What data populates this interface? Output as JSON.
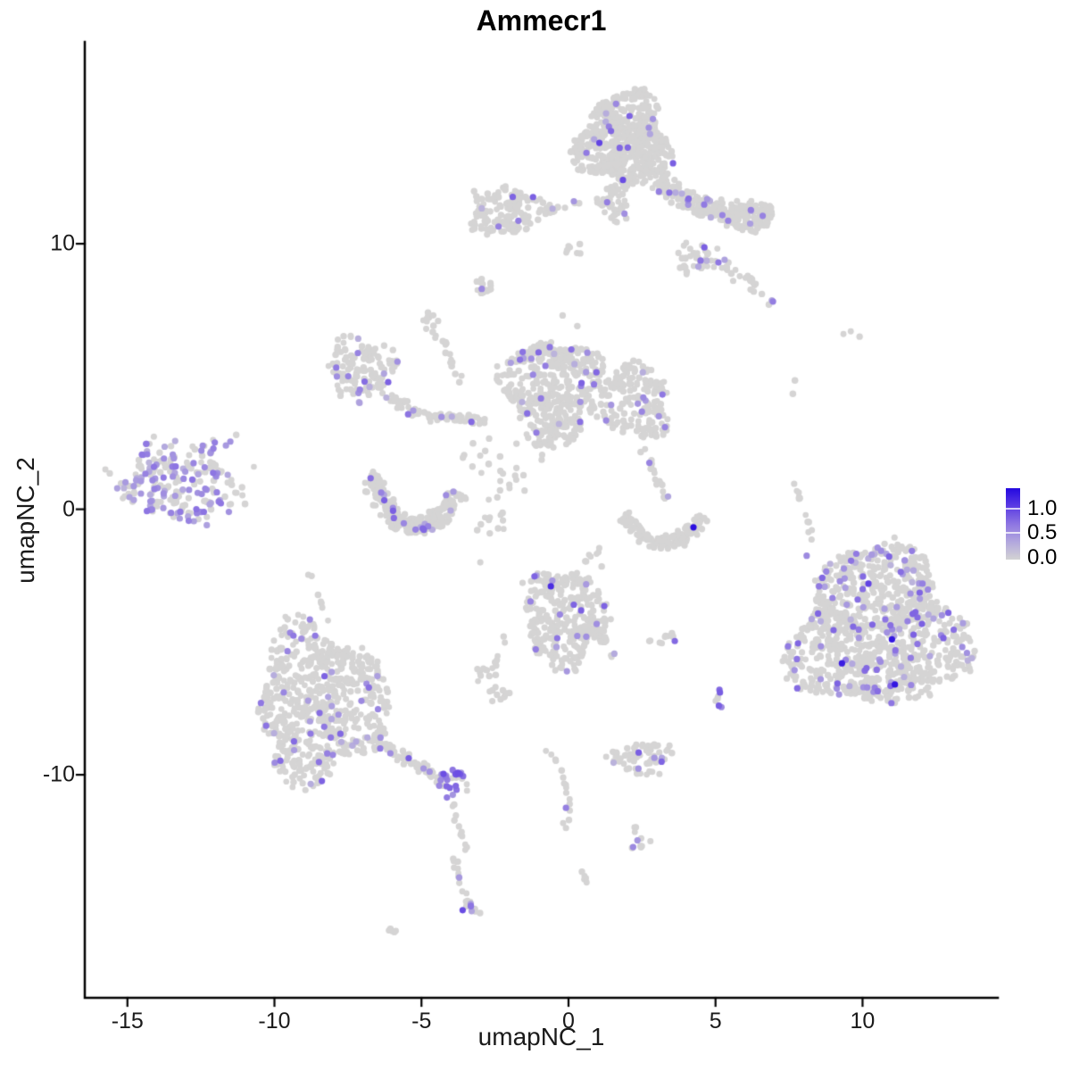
{
  "title": "Ammecr1",
  "axes": {
    "x": {
      "label": "umapNC_1"
    },
    "y": {
      "label": "umapNC_2"
    }
  },
  "legend": {
    "labels": [
      "1.0",
      "0.5",
      "0.0"
    ],
    "low_color": "#d3d3d3",
    "high_color": "#2408e0",
    "max_value": 1.4
  },
  "chart_data": {
    "type": "scatter",
    "title": "Ammecr1",
    "xlabel": "umapNC_1",
    "ylabel": "umapNC_2",
    "xlim": [
      -16.45,
      14.6
    ],
    "ylim": [
      -18.4,
      17.6
    ],
    "x_ticks": [
      -15,
      -10,
      -5,
      0,
      5,
      10
    ],
    "y_ticks": [
      10,
      0,
      -10
    ],
    "grid": false,
    "legend_position": "right",
    "point_base_color": "#d5d4d4",
    "expression_palette": [
      "#d3d3d3",
      "#b2a7de",
      "#8d75e2",
      "#5b3ce3",
      "#2408e0"
    ],
    "default_expr_range": [
      0.25,
      0.85
    ],
    "note": "UMAP feature plot; grey cells ~0 expression, purple-blue cells expressing Ammecr1 (scale 0 to ~1.4)",
    "clusters": [
      {
        "name": "top-main",
        "shape": "blob",
        "cx": 1.9,
        "cy": 13.9,
        "rx": 1.55,
        "ry": 1.75,
        "n": 600,
        "expr_frac": 0.04
      },
      {
        "name": "top-neck",
        "shape": "blob",
        "cx": 1.6,
        "cy": 11.6,
        "rx": 0.55,
        "ry": 0.8,
        "n": 45,
        "expr_frac": 0.05
      },
      {
        "name": "top-right-arm",
        "shape": "trail",
        "anchors": [
          [
            3.0,
            12.35
          ],
          [
            4.8,
            10.9
          ],
          [
            6.8,
            10.95
          ]
        ],
        "w": 1.05,
        "n": 220,
        "expr_frac": 0.06
      },
      {
        "name": "top-right-knob",
        "shape": "blob",
        "cx": 6.2,
        "cy": 11.1,
        "rx": 0.75,
        "ry": 0.65,
        "n": 60,
        "expr_frac": 0.05
      },
      {
        "name": "top-left-arm",
        "shape": "blob",
        "cx": -2.1,
        "cy": 11.25,
        "rx": 1.35,
        "ry": 0.9,
        "n": 140,
        "expr_frac": 0.04
      },
      {
        "name": "top-neck-dots",
        "shape": "trail",
        "anchors": [
          [
            -0.65,
            11.2
          ],
          [
            0.35,
            11.55
          ]
        ],
        "w": 0.4,
        "n": 12,
        "expr_frac": 0.08
      },
      {
        "name": "top-low-blob",
        "shape": "blob",
        "cx": 4.4,
        "cy": 9.5,
        "rx": 0.8,
        "ry": 0.6,
        "n": 40,
        "expr_frac": 0.05
      },
      {
        "name": "top-low-trail",
        "shape": "trail",
        "anchors": [
          [
            5.0,
            9.4
          ],
          [
            5.9,
            8.9
          ],
          [
            6.9,
            7.75
          ]
        ],
        "w": 0.45,
        "n": 28,
        "expr_frac": 0.1
      },
      {
        "name": "v-blob",
        "shape": "blob",
        "cx": 0.2,
        "cy": 9.75,
        "rx": 0.35,
        "ry": 0.3,
        "n": 7,
        "expr_frac": 0
      },
      {
        "name": "small-blob-a",
        "shape": "blob",
        "cx": -2.95,
        "cy": 8.35,
        "rx": 0.35,
        "ry": 0.4,
        "n": 13,
        "expr_frac": 0.1
      },
      {
        "name": "small-blob-b",
        "shape": "blob",
        "cx": -4.65,
        "cy": 6.95,
        "rx": 0.4,
        "ry": 0.5,
        "n": 13,
        "expr_frac": 0
      },
      {
        "name": "small-trail",
        "shape": "trail",
        "anchors": [
          [
            -4.25,
            6.4
          ],
          [
            -3.65,
            4.7
          ]
        ],
        "w": 0.3,
        "n": 13,
        "expr_frac": 0
      },
      {
        "name": "mid-left",
        "shape": "blob",
        "cx": -7.05,
        "cy": 5.3,
        "rx": 1.15,
        "ry": 1.2,
        "n": 130,
        "expr_frac": 0.13
      },
      {
        "name": "mid-bridge",
        "shape": "trail",
        "anchors": [
          [
            -6.35,
            4.4
          ],
          [
            -5.3,
            3.5
          ],
          [
            -4.3,
            3.45
          ]
        ],
        "w": 0.6,
        "n": 50,
        "expr_frac": 0.1
      },
      {
        "name": "mid-chain",
        "shape": "trail",
        "anchors": [
          [
            -4.3,
            3.5
          ],
          [
            -2.85,
            3.35
          ]
        ],
        "w": 0.55,
        "n": 30,
        "expr_frac": 0.07
      },
      {
        "name": "mid-right",
        "shape": "blob",
        "cx": -0.6,
        "cy": 4.5,
        "rx": 1.6,
        "ry": 2.0,
        "n": 450,
        "expr_frac": 0.075
      },
      {
        "name": "mid-right-east",
        "shape": "blob",
        "cx": 2.1,
        "cy": 4.1,
        "rx": 1.35,
        "ry": 1.4,
        "n": 190,
        "expr_frac": 0.055
      },
      {
        "name": "south-crescent",
        "shape": "trail",
        "anchors": [
          [
            -6.7,
            1.4
          ],
          [
            -5.6,
            -2.4
          ],
          [
            -3.7,
            0.6
          ]
        ],
        "w": 1.0,
        "n": 280,
        "expr_frac": 0.07
      },
      {
        "name": "center-sparse",
        "shape": "blob",
        "cx": -2.2,
        "cy": 1.5,
        "rx": 1.4,
        "ry": 1.2,
        "n": 26,
        "expr_frac": 0.04
      },
      {
        "name": "center-sparse-b",
        "shape": "blob",
        "cx": -2.5,
        "cy": -0.5,
        "rx": 0.6,
        "ry": 0.55,
        "n": 11,
        "expr_frac": 0
      },
      {
        "name": "banana",
        "shape": "trail",
        "anchors": [
          [
            1.9,
            -0.2
          ],
          [
            3.2,
            -2.3
          ],
          [
            4.6,
            -0.3
          ]
        ],
        "w": 0.8,
        "n": 130,
        "expr_frac": 0.025
      },
      {
        "name": "banana-north-trail",
        "shape": "trail",
        "anchors": [
          [
            2.55,
            2.3
          ],
          [
            3.35,
            0.35
          ]
        ],
        "w": 0.4,
        "n": 18,
        "expr_frac": 0.06
      },
      {
        "name": "right-trail",
        "shape": "trail",
        "anchors": [
          [
            7.75,
            1.0
          ],
          [
            8.0,
            -0.2
          ],
          [
            8.35,
            -1.3
          ]
        ],
        "w": 0.25,
        "n": 12,
        "expr_frac": 0
      },
      {
        "name": "right-big",
        "shape": "blob",
        "cx": 10.55,
        "cy": -4.55,
        "rx": 2.9,
        "ry": 3.0,
        "n": 1100,
        "expr_frac": 0.085
      },
      {
        "name": "bottom-left",
        "shape": "blob",
        "cx": -8.45,
        "cy": -7.3,
        "rx": 2.2,
        "ry": 2.9,
        "n": 650,
        "expr_frac": 0.065
      },
      {
        "name": "bl-tail",
        "shape": "trail",
        "anchors": [
          [
            -6.4,
            -8.8
          ],
          [
            -5.2,
            -9.7
          ],
          [
            -4.4,
            -10.1
          ]
        ],
        "w": 0.55,
        "n": 55,
        "expr_frac": 0.15
      },
      {
        "name": "purple-blob",
        "shape": "blob",
        "cx": -3.95,
        "cy": -10.3,
        "rx": 0.5,
        "ry": 0.6,
        "n": 28,
        "expr_frac": 0.75,
        "expr_range": [
          0.45,
          0.95
        ]
      },
      {
        "name": "below-trail",
        "shape": "trail",
        "anchors": [
          [
            -4.0,
            -10.9
          ],
          [
            -3.45,
            -13.0
          ]
        ],
        "w": 0.2,
        "n": 11,
        "expr_frac": 0
      },
      {
        "name": "bottom-tail",
        "shape": "trail",
        "anchors": [
          [
            -3.85,
            -13.1
          ],
          [
            -3.75,
            -14.4
          ],
          [
            -3.1,
            -15.3
          ]
        ],
        "w": 0.4,
        "n": 24,
        "expr_frac": 0.08
      },
      {
        "name": "bottom-dash",
        "shape": "trail",
        "anchors": [
          [
            -6.3,
            -15.65
          ],
          [
            -5.75,
            -16.05
          ]
        ],
        "w": 0.18,
        "n": 6,
        "expr_frac": 0
      },
      {
        "name": "mid-bottom",
        "shape": "blob",
        "cx": -0.15,
        "cy": -4.1,
        "rx": 1.4,
        "ry": 1.85,
        "n": 320,
        "expr_frac": 0.055
      },
      {
        "name": "mid-bottom-tail",
        "shape": "trail",
        "anchors": [
          [
            0.75,
            -4.1
          ],
          [
            1.5,
            -5.7
          ]
        ],
        "w": 0.55,
        "n": 26,
        "expr_frac": 0.04
      },
      {
        "name": "mb-west-trail",
        "shape": "trail",
        "anchors": [
          [
            -2.0,
            -4.6
          ],
          [
            -2.6,
            -6.1
          ]
        ],
        "w": 0.25,
        "n": 8,
        "expr_frac": 0
      },
      {
        "name": "small-horizontal",
        "shape": "blob",
        "cx": 3.1,
        "cy": -4.85,
        "rx": 0.6,
        "ry": 0.28,
        "n": 12,
        "expr_frac": 0.08
      },
      {
        "name": "pair-east",
        "shape": "blob",
        "cx": 5.1,
        "cy": -7.1,
        "rx": 0.2,
        "ry": 0.45,
        "n": 5,
        "expr_frac": 0.4,
        "expr_range": [
          0.5,
          0.9
        ]
      },
      {
        "name": "bottom-center-right",
        "shape": "blob",
        "cx": 2.5,
        "cy": -9.4,
        "rx": 1.0,
        "ry": 0.6,
        "n": 70,
        "expr_frac": 0.1
      },
      {
        "name": "bc-curve-trail",
        "shape": "trail",
        "anchors": [
          [
            -0.8,
            -9.0
          ],
          [
            0.5,
            -10.7
          ],
          [
            -0.25,
            -12.1
          ]
        ],
        "w": 0.28,
        "n": 18,
        "expr_frac": 0.18
      },
      {
        "name": "small-blob-br",
        "shape": "blob",
        "cx": 2.4,
        "cy": -12.4,
        "rx": 0.45,
        "ry": 0.45,
        "n": 12,
        "expr_frac": 0.1
      },
      {
        "name": "small-dash-c",
        "shape": "trail",
        "anchors": [
          [
            0.45,
            -13.6
          ],
          [
            0.7,
            -14.25
          ]
        ],
        "w": 0.15,
        "n": 5,
        "expr_frac": 0
      },
      {
        "name": "small-pair-a",
        "shape": "blob",
        "cx": -2.85,
        "cy": -6.25,
        "rx": 0.35,
        "ry": 0.3,
        "n": 9,
        "expr_frac": 0
      },
      {
        "name": "small-pair-b",
        "shape": "blob",
        "cx": -2.45,
        "cy": -6.95,
        "rx": 0.4,
        "ry": 0.35,
        "n": 11,
        "expr_frac": 0.1
      },
      {
        "name": "nw-bl-trail",
        "shape": "trail",
        "anchors": [
          [
            -8.85,
            -2.4
          ],
          [
            -8.15,
            -4.2
          ]
        ],
        "w": 0.3,
        "n": 7,
        "expr_frac": 0
      },
      {
        "name": "above-banana-dots",
        "shape": "blob",
        "cx": 1.0,
        "cy": -1.8,
        "rx": 0.45,
        "ry": 0.45,
        "n": 8,
        "expr_frac": 0
      },
      {
        "name": "left-island",
        "shape": "blob",
        "cx": -13.25,
        "cy": 1.15,
        "rx": 1.9,
        "ry": 1.7,
        "n": 215,
        "expr_frac": 0.4,
        "expr_range": [
          0.25,
          0.72
        ]
      }
    ],
    "singles": {
      "gray": [
        [
          7.63,
          4.35
        ],
        [
          7.7,
          4.85
        ],
        [
          9.35,
          6.6
        ],
        [
          9.6,
          6.7
        ],
        [
          9.9,
          6.5
        ],
        [
          5.6,
          8.6
        ],
        [
          -15.75,
          1.5
        ],
        [
          -15.6,
          1.35
        ],
        [
          -10.7,
          1.6
        ],
        [
          -11.3,
          2.8
        ],
        [
          -11.0,
          0.2
        ],
        [
          -3.0,
          -2.0
        ],
        [
          0.3,
          6.9
        ],
        [
          -0.2,
          7.3
        ]
      ],
      "expressing": [
        [
          4.25,
          -0.68,
          1.35
        ],
        [
          11.0,
          -4.9,
          1.3
        ],
        [
          9.3,
          -5.8,
          1.25
        ],
        [
          11.1,
          -6.6,
          1.3
        ],
        [
          10.2,
          -2.8,
          1.0
        ],
        [
          -0.6,
          -2.9,
          1.15
        ],
        [
          1.05,
          13.8,
          1.0
        ],
        [
          1.85,
          12.4,
          0.95
        ],
        [
          8.1,
          -1.75,
          0.55
        ],
        [
          -3.6,
          -15.1,
          0.95
        ],
        [
          -3.32,
          -14.95,
          0.7
        ],
        [
          -11.5,
          2.55,
          0.5
        ],
        [
          -11.65,
          2.4,
          0.45
        ],
        [
          -11.55,
          -0.1,
          0.5
        ],
        [
          -12.3,
          -0.6,
          0.4
        ],
        [
          5.15,
          -6.9,
          0.85
        ],
        [
          5.2,
          -7.45,
          0.55
        ],
        [
          2.75,
          1.75,
          0.6
        ],
        [
          -2.95,
          8.3,
          0.55
        ]
      ]
    }
  }
}
